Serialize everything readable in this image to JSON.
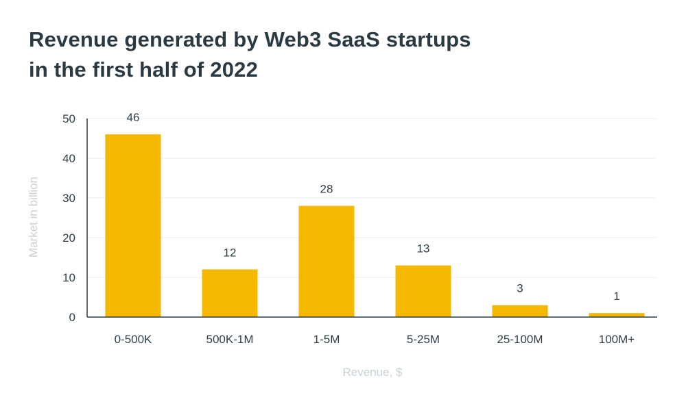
{
  "title": {
    "line1": "Revenue generated by Web3 SaaS startups",
    "line2": "in the first half of 2022"
  },
  "colors": {
    "bar": "#F5B800",
    "axis": "#2b3a42",
    "grid": "#e8eef1",
    "text": "#2f3e46",
    "axis_title": "#c7d2d7"
  },
  "chart_data": {
    "type": "bar",
    "categories": [
      "0-500K",
      "500K-1M",
      "1-5M",
      "5-25M",
      "25-100M",
      "100M+"
    ],
    "values": [
      46,
      12,
      28,
      13,
      3,
      1
    ],
    "data_labels": [
      "46",
      "12",
      "28",
      "13",
      "3",
      "1"
    ],
    "xlabel": "Revenue, $",
    "ylabel": "Market in billion",
    "ylim": [
      0,
      50
    ],
    "yticks": [
      0,
      10,
      20,
      30,
      40,
      50
    ],
    "grid": true,
    "legend": "none"
  }
}
